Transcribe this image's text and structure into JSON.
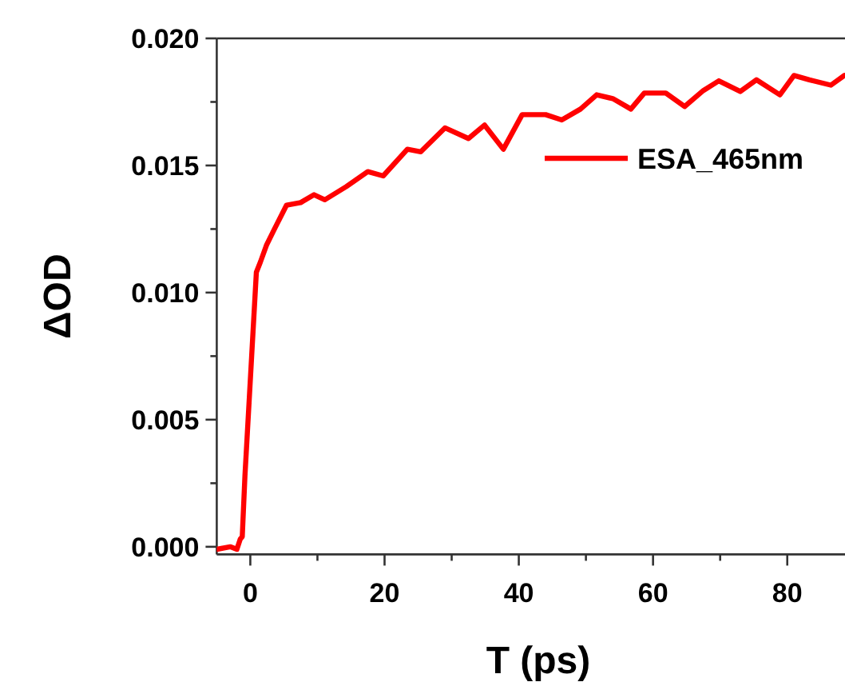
{
  "chart_data": {
    "type": "line",
    "xlabel": "T (ps)",
    "ylabel": "ΔOD",
    "xlim": [
      -5,
      88.6
    ],
    "ylim": [
      -0.0003,
      0.02
    ],
    "xticks": [
      0,
      {
        "value": 10,
        "label": null
      },
      20,
      {
        "value": 30,
        "label": null
      },
      40,
      {
        "value": 50,
        "label": null
      },
      60,
      {
        "value": 70,
        "label": null
      },
      80
    ],
    "yticks": [
      {
        "value": 0,
        "label": "0.000"
      },
      {
        "value": 0.0025,
        "label": null
      },
      {
        "value": 0.005,
        "label": "0.005"
      },
      {
        "value": 0.0075,
        "label": null
      },
      {
        "value": 0.01,
        "label": "0.010"
      },
      {
        "value": 0.0125,
        "label": null
      },
      {
        "value": 0.015,
        "label": "0.015"
      },
      {
        "value": 0.0175,
        "label": null
      },
      {
        "value": 0.02,
        "label": "0.020"
      }
    ],
    "legend": "top right",
    "grid": false,
    "marker": "none",
    "line_style": "solid",
    "x": [
      -5,
      -3,
      -2,
      -1.5,
      -1.2,
      -0.8,
      0.2,
      0.9,
      1.5,
      2.4,
      3.6,
      5.4,
      7.5,
      9.5,
      11.1,
      14.3,
      17.5,
      19.8,
      23.4,
      25.4,
      29,
      32.5,
      34.9,
      37.7,
      40.5,
      44,
      46.4,
      49.2,
      51.6,
      54,
      56.7,
      58.7,
      61.9,
      64.7,
      67.5,
      69.8,
      73,
      75.4,
      78.9,
      81,
      83.3,
      86.5,
      88.5
    ],
    "series": [
      {
        "name": "ESA_465nm",
        "color": "#ff0000",
        "values": [
          -0.0001,
          0,
          -0.0001,
          0.0003,
          0.0004,
          0.0028,
          0.0075,
          0.0108,
          0.0112,
          0.01186,
          0.0125,
          0.01344,
          0.01354,
          0.01385,
          0.01365,
          0.01417,
          0.01476,
          0.01459,
          0.01564,
          0.01554,
          0.01648,
          0.01606,
          0.01659,
          0.01564,
          0.017,
          0.017,
          0.01679,
          0.01722,
          0.01778,
          0.01763,
          0.01722,
          0.01785,
          0.01785,
          0.01732,
          0.01795,
          0.01833,
          0.01791,
          0.01837,
          0.01778,
          0.01854,
          0.01837,
          0.01816,
          0.01854
        ]
      }
    ]
  }
}
